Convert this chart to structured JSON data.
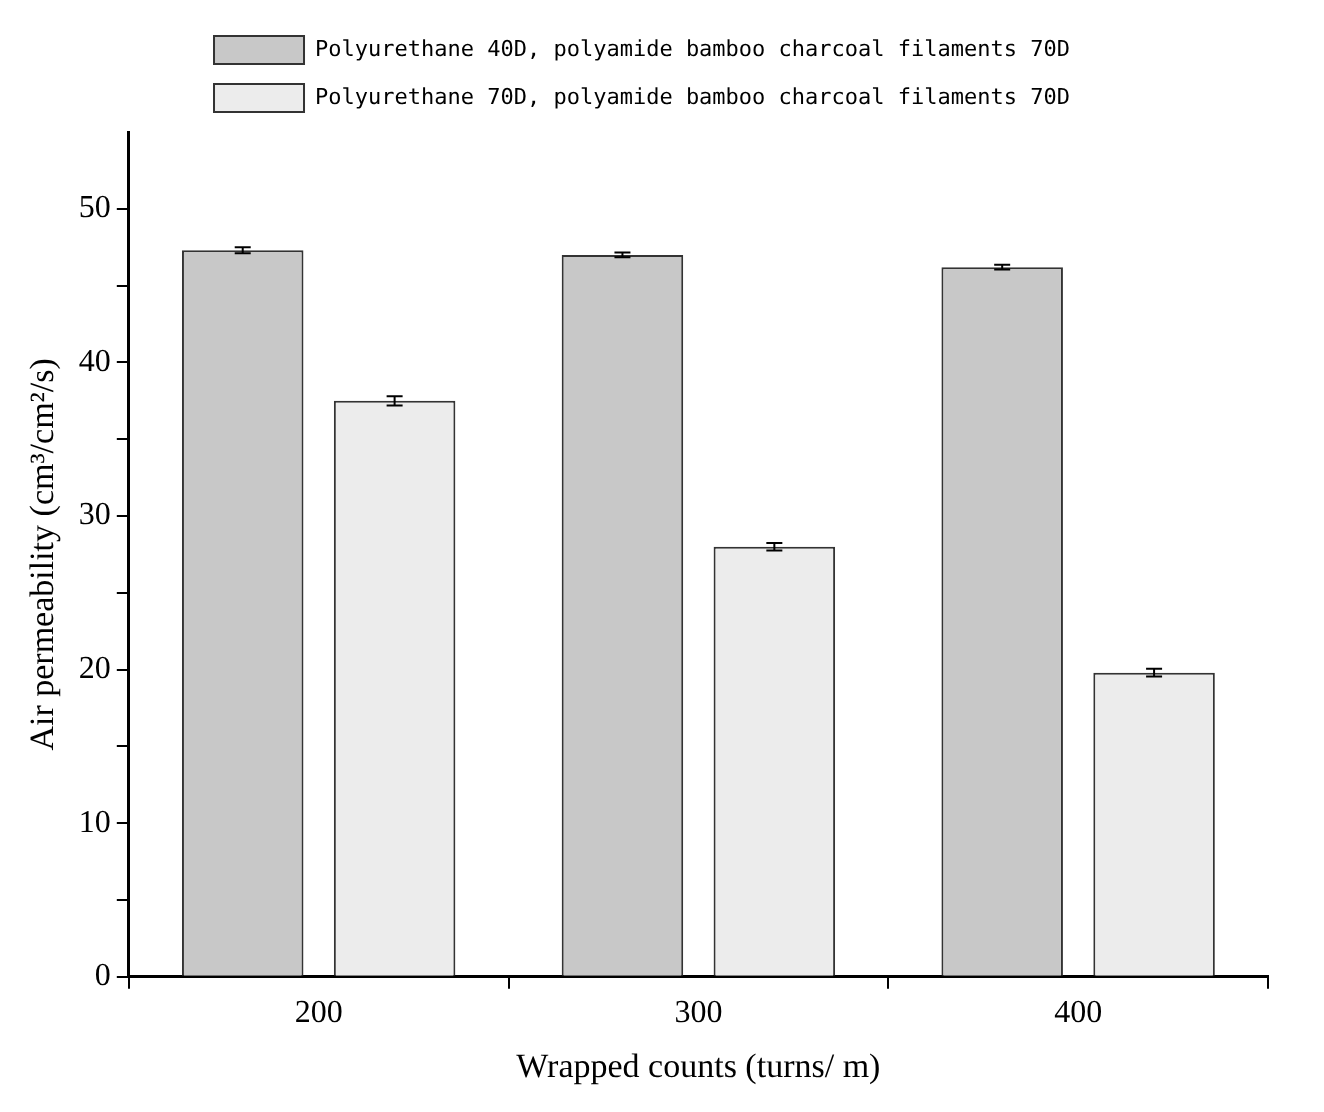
{
  "chart_data": {
    "type": "bar",
    "xlabel": "Wrapped counts (turns/ m)",
    "ylabel": "Air permeability (cm³/cm²/s)",
    "categories": [
      "200",
      "300",
      "400"
    ],
    "series": [
      {
        "name": "Polyurethane 40D, polyamide bamboo charcoal filaments 70D",
        "color": "#c8c8c8",
        "values": [
          47.3,
          47.0,
          46.2
        ],
        "errors": [
          0.2,
          0.15,
          0.15
        ]
      },
      {
        "name": "Polyurethane 70D, polyamide bamboo charcoal filaments 70D",
        "color": "#ececec",
        "values": [
          37.5,
          28.0,
          19.8
        ],
        "errors": [
          0.3,
          0.25,
          0.25
        ]
      }
    ],
    "ylim": [
      0,
      55
    ],
    "yticks": [
      0,
      {
        "value": 5,
        "label": null
      },
      10,
      {
        "value": 15,
        "label": null
      },
      20,
      {
        "value": 25,
        "label": null
      },
      30,
      {
        "value": 35,
        "label": null
      },
      40,
      {
        "value": 45,
        "label": null
      },
      50
    ],
    "grid": false,
    "legend": "top"
  }
}
